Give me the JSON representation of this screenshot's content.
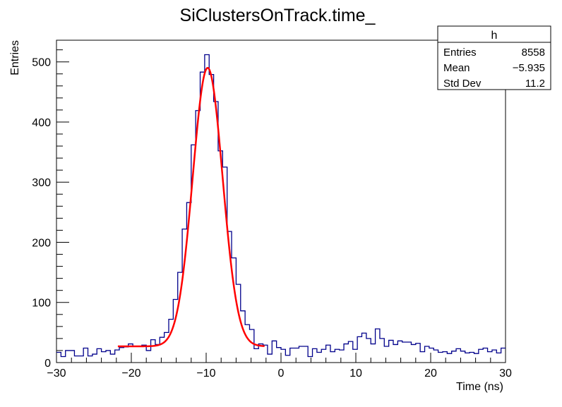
{
  "chart_data": {
    "type": "histogram",
    "title": "SiClustersOnTrack.time_",
    "xlabel": "Time (ns)",
    "ylabel": "Entries",
    "xlim": [
      -30,
      30
    ],
    "ylim": [
      0,
      536
    ],
    "x_ticks": [
      "−30",
      "−20",
      "−10",
      "0",
      "10",
      "20",
      "30"
    ],
    "y_ticks": [
      "0",
      "100",
      "200",
      "300",
      "400",
      "500"
    ],
    "grid": false,
    "bin_edges_range": [
      -30,
      30
    ],
    "bin_count": 100,
    "values": [
      17,
      10,
      20,
      20,
      11,
      11,
      24,
      11,
      14,
      23,
      18,
      20,
      14,
      21,
      25,
      26,
      31,
      27,
      27,
      29,
      20,
      38,
      30,
      42,
      50,
      72,
      105,
      150,
      222,
      266,
      362,
      419,
      483,
      512,
      479,
      434,
      352,
      325,
      218,
      174,
      130,
      86,
      63,
      55,
      23,
      31,
      29,
      14,
      36,
      25,
      22,
      12,
      24,
      24,
      27,
      27,
      10,
      23,
      17,
      22,
      29,
      18,
      22,
      21,
      31,
      35,
      22,
      43,
      49,
      40,
      31,
      56,
      40,
      27,
      37,
      30,
      36,
      34,
      34,
      30,
      32,
      18,
      27,
      24,
      21,
      17,
      18,
      15,
      19,
      23,
      19,
      16,
      17,
      15,
      22,
      24,
      18,
      21,
      16,
      24
    ],
    "histogram_color": "#00008b",
    "fit": {
      "function": "gaus + constant",
      "constant": 27,
      "amplitude": 463,
      "mean": -9.8,
      "sigma": 2.0,
      "range": [
        -21.8,
        -2.2
      ],
      "color": "#ff0000"
    },
    "stats_box": {
      "name": "h",
      "position": "top-right",
      "rows": [
        {
          "label": "Entries",
          "value": "8558"
        },
        {
          "label": "Mean",
          "value": "−5.935"
        },
        {
          "label": "Std Dev",
          "value": "11.2"
        }
      ]
    }
  }
}
